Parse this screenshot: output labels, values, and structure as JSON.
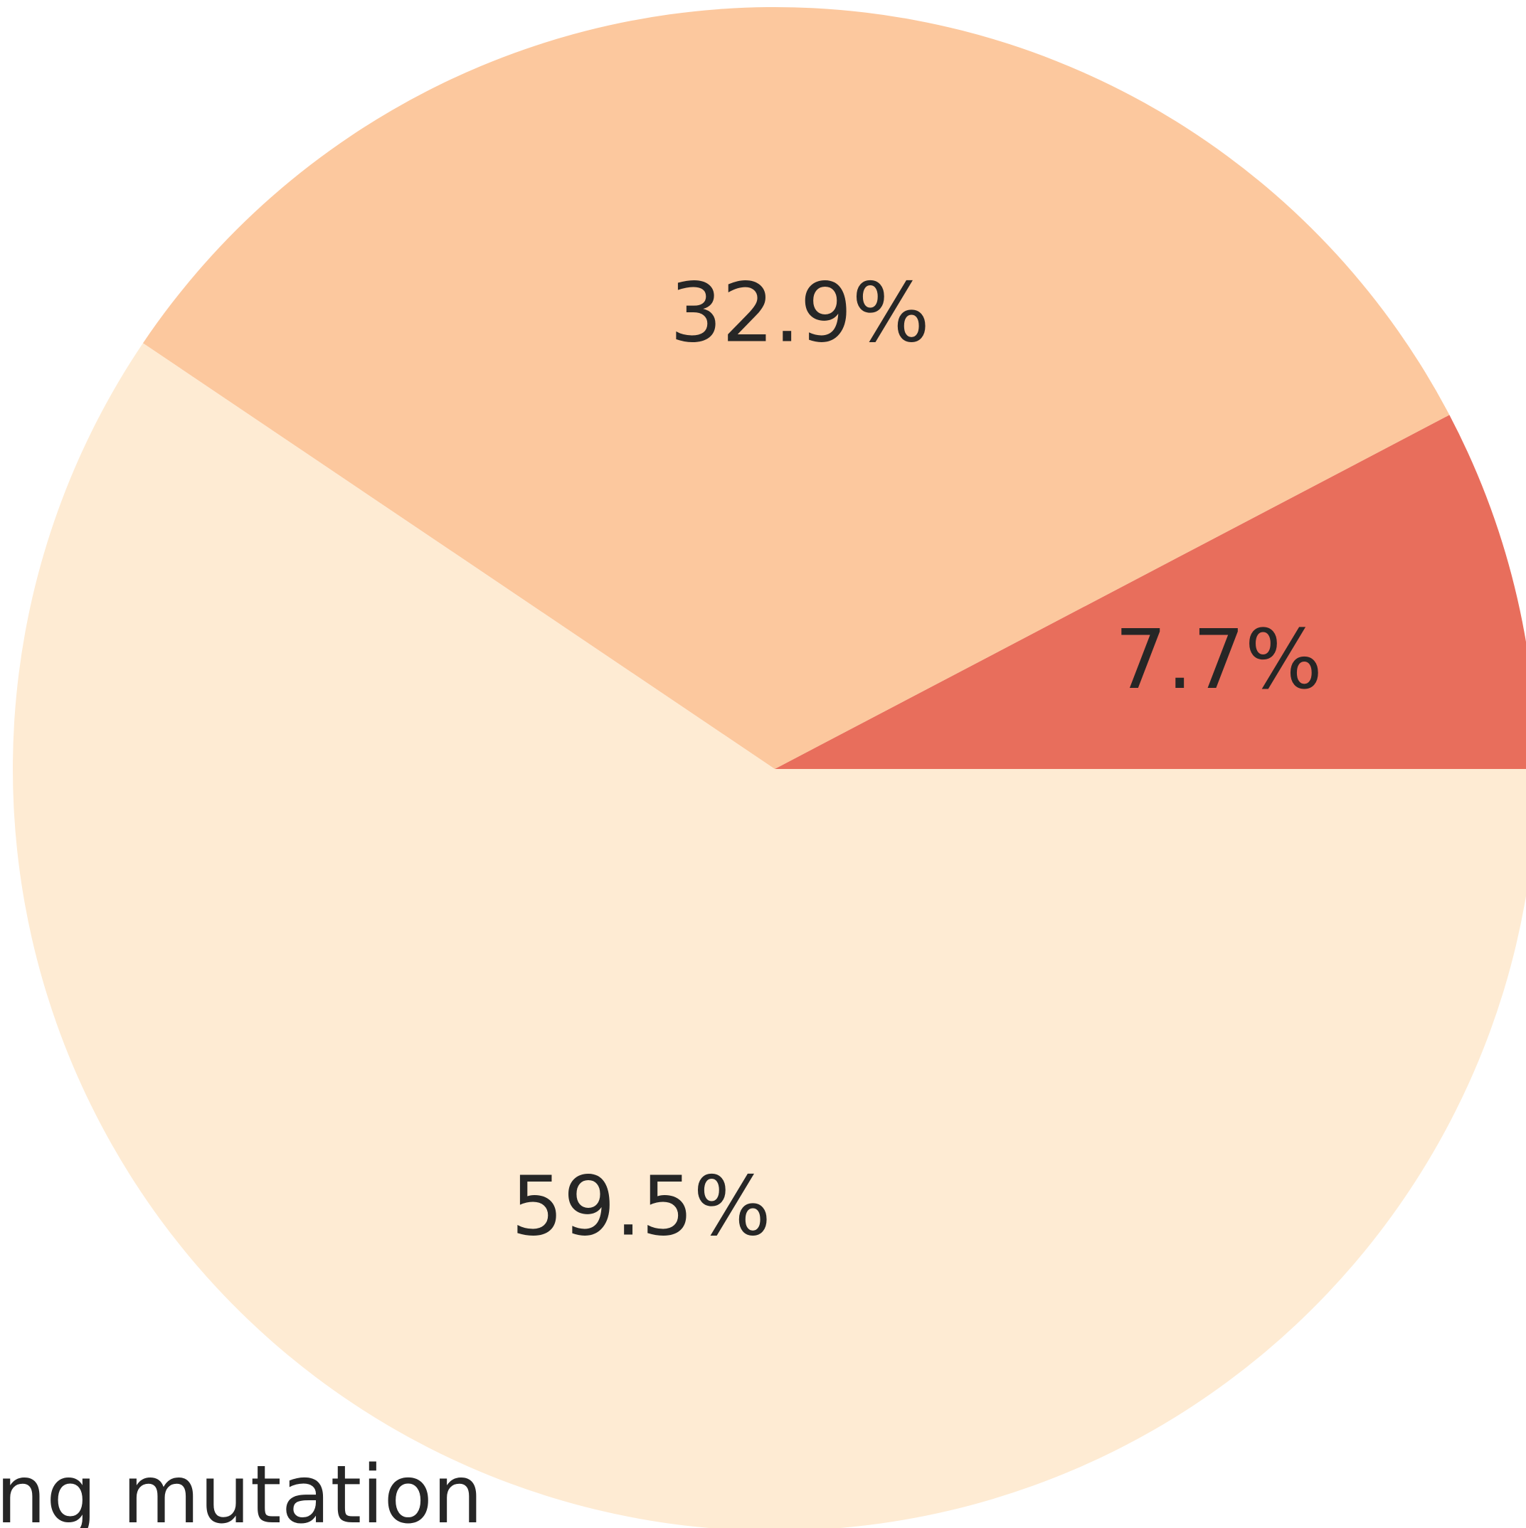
{
  "chart_data": {
    "type": "pie",
    "values": [
      7.7,
      32.9,
      59.5
    ],
    "value_labels": [
      "7.7%",
      "32.9%",
      "59.5%"
    ],
    "colors": [
      "#e86e5c",
      "#fcc89e",
      "#feebd3"
    ],
    "annotation": "ng mutation"
  }
}
